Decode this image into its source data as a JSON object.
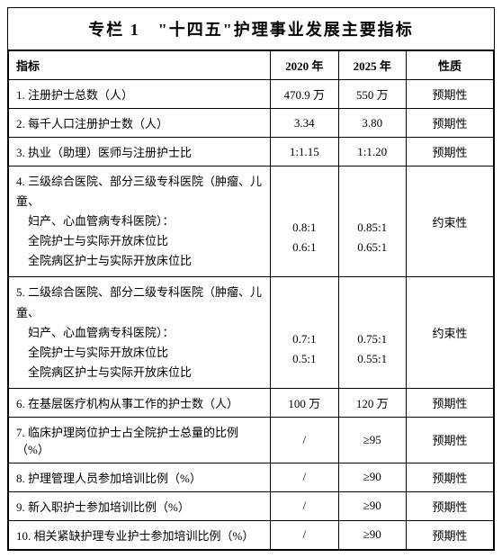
{
  "title": "专栏 1　\"十四五\"护理事业发展主要指标",
  "headers": {
    "indicator": "指标",
    "y2020": "2020 年",
    "y2025": "2025 年",
    "nature": "性质"
  },
  "rows": [
    {
      "indicator": "1. 注册护士总数（人）",
      "y2020": "470.9 万",
      "y2025": "550 万",
      "nature": "预期性"
    },
    {
      "indicator": "2. 每千人口注册护士数（人）",
      "y2020": "3.34",
      "y2025": "3.80",
      "nature": "预期性"
    },
    {
      "indicator": "3. 执业（助理）医师与注册护士比",
      "y2020": "1:1.15",
      "y2025": "1:1.20",
      "nature": "预期性"
    },
    {
      "indicator_lines": [
        "4. 三级综合医院、部分三级专科医院（肿瘤、儿童、",
        "　妇产、心血管病专科医院）：",
        "　全院护士与实际开放床位比",
        "　全院病区护士与实际开放床位比"
      ],
      "y2020_lines": [
        "0.8:1",
        "0.6:1"
      ],
      "y2025_lines": [
        "0.85:1",
        "0.65:1"
      ],
      "nature": "约束性"
    },
    {
      "indicator_lines": [
        "5. 二级综合医院、部分二级专科医院（肿瘤、儿童、",
        "　妇产、心血管病专科医院）：",
        "　全院护士与实际开放床位比",
        "　全院病区护士与实际开放床位比"
      ],
      "y2020_lines": [
        "0.7:1",
        "0.5:1"
      ],
      "y2025_lines": [
        "0.75:1",
        "0.55:1"
      ],
      "nature": "约束性"
    },
    {
      "indicator": "6. 在基层医疗机构从事工作的护士数（人）",
      "y2020": "100 万",
      "y2025": "120 万",
      "nature": "预期性"
    },
    {
      "indicator": "7. 临床护理岗位护士占全院护士总量的比例（%）",
      "y2020": "/",
      "y2025": "≥95",
      "nature": "预期性"
    },
    {
      "indicator": "8. 护理管理人员参加培训比例（%）",
      "y2020": "/",
      "y2025": "≥90",
      "nature": "预期性"
    },
    {
      "indicator": "9. 新入职护士参加培训比例（%）",
      "y2020": "/",
      "y2025": "≥90",
      "nature": "预期性"
    },
    {
      "indicator": "10. 相关紧缺护理专业护士参加培训比例（%）",
      "y2020": "/",
      "y2025": "≥90",
      "nature": "预期性"
    }
  ]
}
